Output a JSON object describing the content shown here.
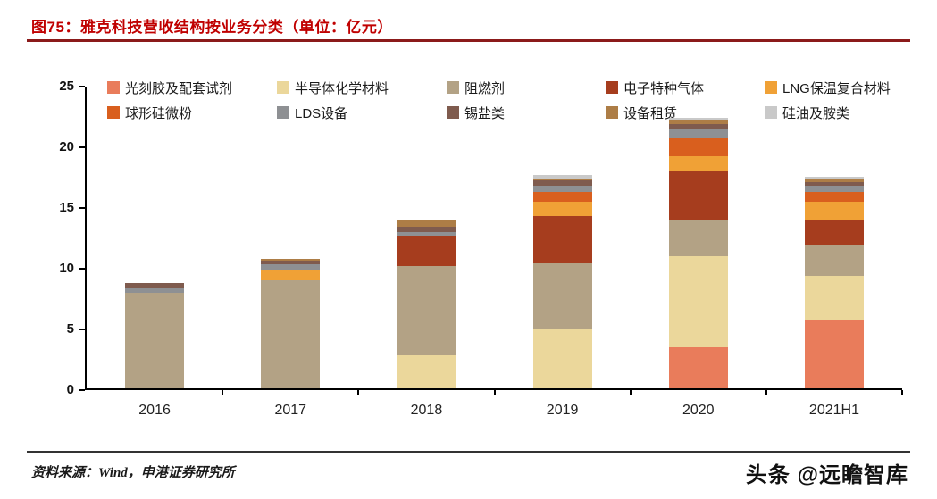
{
  "title": "图75：雅克科技营收结构按业务分类（单位：亿元）",
  "footer": {
    "source": "资料来源：Wind，申港证券研究所",
    "watermark": "头条 @远瞻智库"
  },
  "colors": {
    "title_red": "#c00000",
    "rule_dark_red": "#8b1a1a",
    "axis_black": "#000000"
  },
  "chart_data": {
    "type": "bar",
    "stacked": true,
    "grid": false,
    "legend_position": "top",
    "title": "雅克科技营收结构按业务分类（单位：亿元）",
    "xlabel": "",
    "ylabel": "",
    "ylim": [
      0,
      25
    ],
    "yticks": [
      0,
      5,
      10,
      15,
      20,
      25
    ],
    "categories": [
      "2016",
      "2017",
      "2018",
      "2019",
      "2020",
      "2021H1"
    ],
    "series": [
      {
        "name": "光刻胶及配套试剂",
        "color": "#e97c5b",
        "values": [
          0,
          0,
          0,
          0,
          3.4,
          5.6
        ]
      },
      {
        "name": "半导体化学材料",
        "color": "#ebd79b",
        "values": [
          0,
          0,
          2.7,
          4.9,
          7.5,
          3.7
        ]
      },
      {
        "name": "阻燃剂",
        "color": "#b3a285",
        "values": [
          7.9,
          8.9,
          7.4,
          5.4,
          3.0,
          2.5
        ]
      },
      {
        "name": "电子特种气体",
        "color": "#a63d1e",
        "values": [
          0,
          0,
          2.5,
          3.9,
          4.0,
          2.0
        ]
      },
      {
        "name": "LNG保温复合材料",
        "color": "#f0a136",
        "values": [
          0,
          0.9,
          0,
          1.2,
          1.2,
          1.6
        ]
      },
      {
        "name": "球形硅微粉",
        "color": "#d95f1e",
        "values": [
          0,
          0,
          0,
          0.8,
          1.5,
          0.8
        ]
      },
      {
        "name": "LDS设备",
        "color": "#8e9093",
        "values": [
          0.35,
          0.4,
          0.3,
          0.5,
          0.7,
          0.5
        ]
      },
      {
        "name": "锡盐类",
        "color": "#7f5b4e",
        "values": [
          0.45,
          0.3,
          0.4,
          0.4,
          0.5,
          0.3
        ]
      },
      {
        "name": "设备租赁",
        "color": "#ad7d46",
        "values": [
          0,
          0.2,
          0.6,
          0.2,
          0.3,
          0.2
        ]
      },
      {
        "name": "硅油及胺类",
        "color": "#c9c9c9",
        "values": [
          0,
          0,
          0,
          0.3,
          0.2,
          0.2
        ]
      }
    ]
  }
}
